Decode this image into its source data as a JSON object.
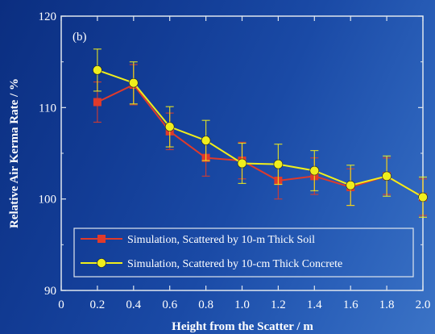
{
  "chart_data": {
    "type": "line",
    "panel_label": "(b)",
    "xlabel": "Height from the Scatter / m",
    "ylabel": "Relative Air Kerma Rate / %",
    "xlim": [
      0,
      2.0
    ],
    "ylim": [
      90,
      120
    ],
    "x_ticks": [
      0,
      0.2,
      0.4,
      0.6,
      0.8,
      1.0,
      1.2,
      1.4,
      1.6,
      1.8,
      2.0
    ],
    "x_tick_labels": [
      "0",
      "0.2",
      "0.4",
      "0.6",
      "0.8",
      "1.0",
      "1.2",
      "1.4",
      "1.6",
      "1.8",
      "2.0"
    ],
    "y_ticks": [
      90,
      100,
      110,
      120
    ],
    "y_tick_labels": [
      "90",
      "100",
      "110",
      "120"
    ],
    "legend_position": "bottom-center",
    "series": [
      {
        "name": "Simulation, Scattered by 10-m Thick Soil",
        "color": "#e03a2a",
        "marker": "square",
        "x": [
          0.2,
          0.4,
          0.6,
          0.8,
          1.0,
          1.2,
          1.4,
          1.6,
          1.8,
          2.0
        ],
        "y": [
          110.6,
          112.5,
          107.4,
          104.5,
          104.2,
          102.0,
          102.5,
          101.3,
          102.5,
          100.2
        ],
        "err": [
          2.2,
          2.2,
          2.0,
          2.0,
          2.0,
          2.0,
          2.0,
          2.0,
          2.0,
          2.0
        ]
      },
      {
        "name": "Simulation, Scattered by 10-cm Thick Concrete",
        "color": "#f0ee1c",
        "marker": "circle",
        "x": [
          0.2,
          0.4,
          0.6,
          0.8,
          1.0,
          1.2,
          1.4,
          1.6,
          1.8,
          2.0
        ],
        "y": [
          114.1,
          112.7,
          107.9,
          106.4,
          103.9,
          103.8,
          103.1,
          101.5,
          102.5,
          100.2
        ],
        "err": [
          2.3,
          2.3,
          2.2,
          2.2,
          2.2,
          2.2,
          2.2,
          2.2,
          2.2,
          2.2
        ]
      }
    ]
  }
}
